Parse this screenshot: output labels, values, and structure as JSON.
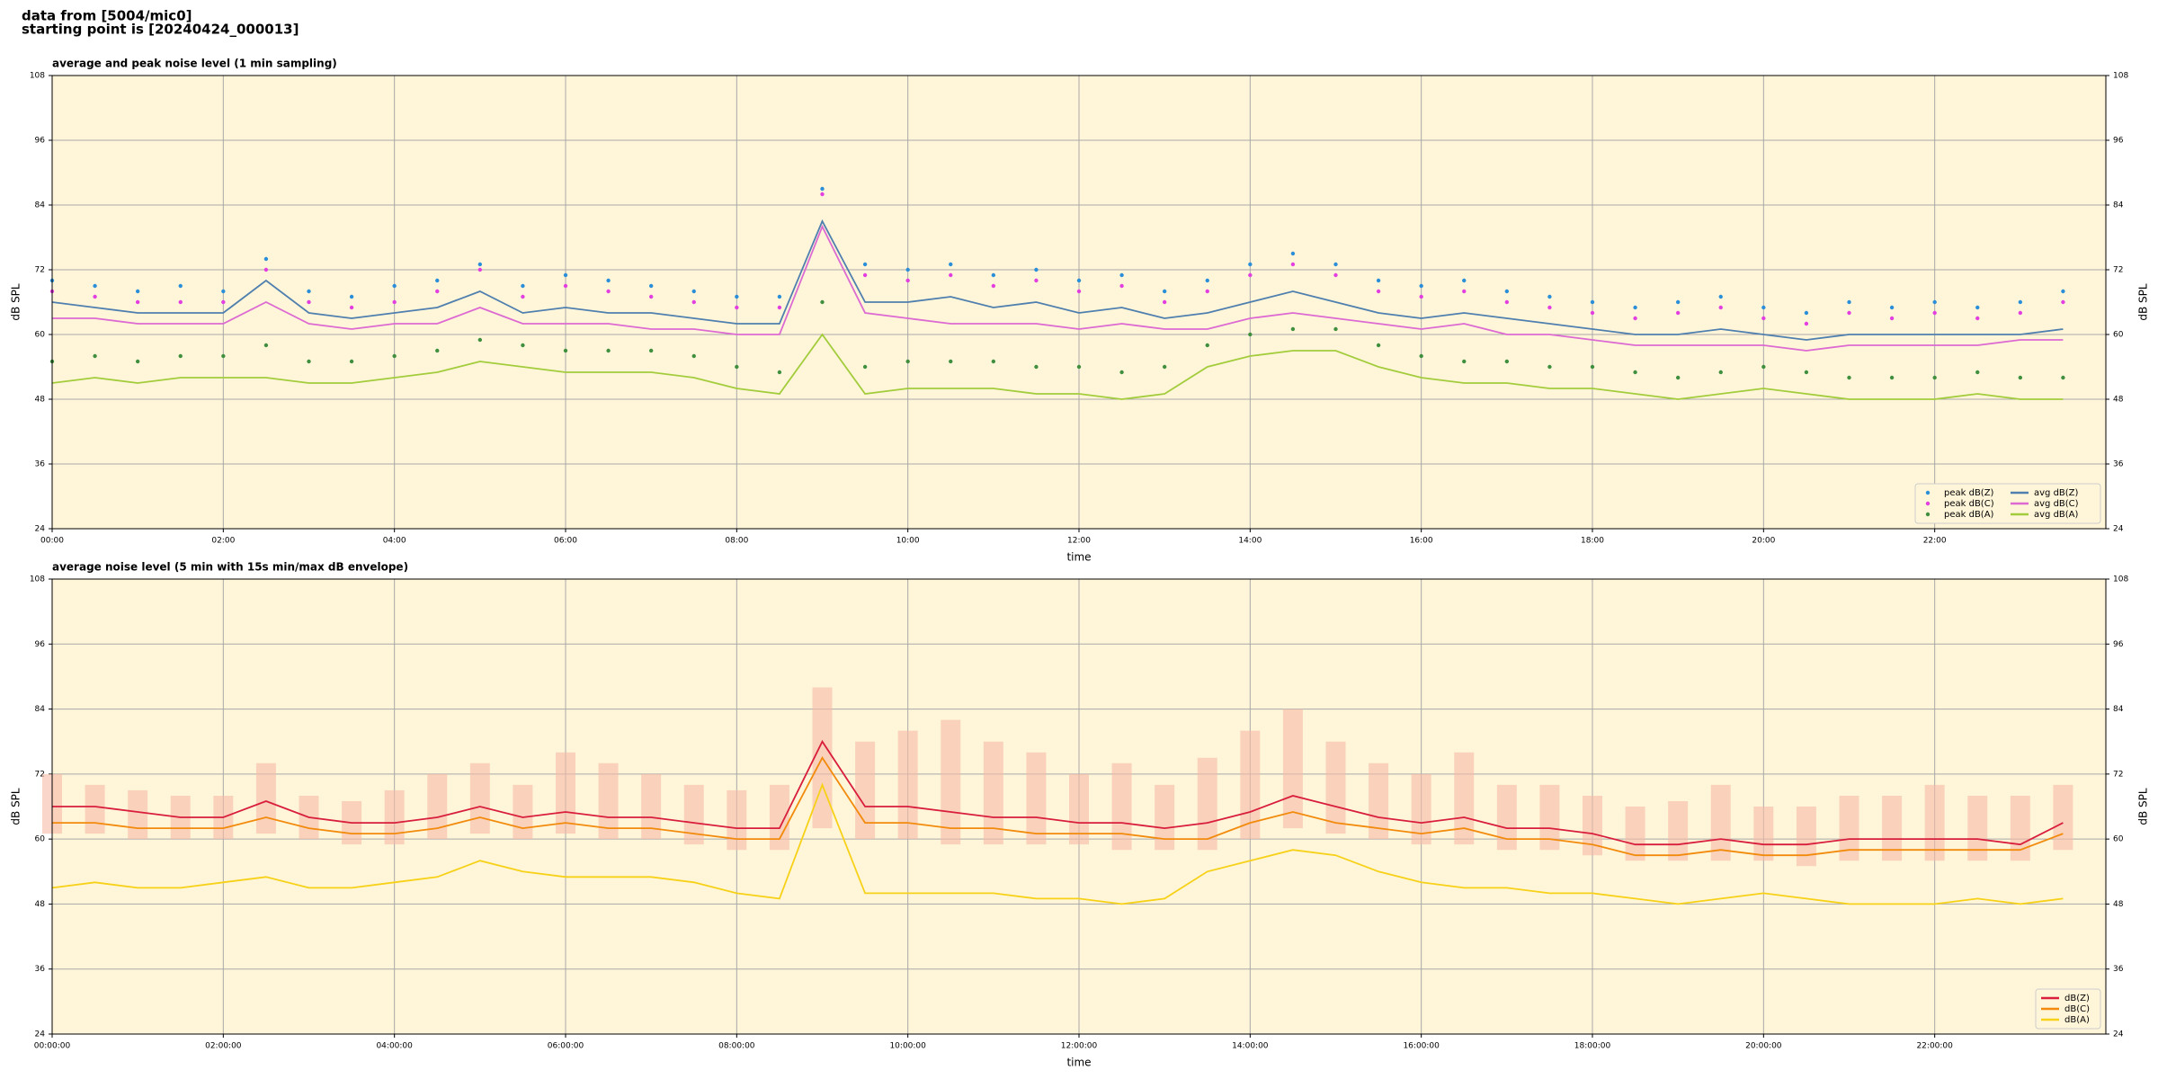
{
  "header": {
    "line1": "data from [5004/mic0]",
    "line2": "starting point is [20240424_000013]"
  },
  "chart_data": [
    {
      "type": "line",
      "title": "average and peak noise level (1 min sampling)",
      "x_label": "time",
      "y_label": "dB SPL",
      "x": [
        0,
        0.5,
        1,
        1.5,
        2,
        2.5,
        3,
        3.5,
        4,
        4.5,
        5,
        5.5,
        6,
        6.5,
        7,
        7.5,
        8,
        8.5,
        9,
        9.5,
        10,
        10.5,
        11,
        11.5,
        12,
        12.5,
        13,
        13.5,
        14,
        14.5,
        15,
        15.5,
        16,
        16.5,
        17,
        17.5,
        18,
        18.5,
        19,
        19.5,
        20,
        20.5,
        21,
        21.5,
        22,
        22.5,
        23,
        23.5
      ],
      "xlim": [
        0,
        24
      ],
      "xticks": [
        {
          "value": 0,
          "label": "00:00"
        },
        {
          "value": 2,
          "label": "02:00"
        },
        {
          "value": 4,
          "label": "04:00"
        },
        {
          "value": 6,
          "label": "06:00"
        },
        {
          "value": 8,
          "label": "08:00"
        },
        {
          "value": 10,
          "label": "10:00"
        },
        {
          "value": 12,
          "label": "12:00"
        },
        {
          "value": 14,
          "label": "14:00"
        },
        {
          "value": 16,
          "label": "16:00"
        },
        {
          "value": 18,
          "label": "18:00"
        },
        {
          "value": 20,
          "label": "20:00"
        },
        {
          "value": 22,
          "label": "22:00"
        }
      ],
      "ylim": [
        24,
        108
      ],
      "yticks": [
        24,
        36,
        48,
        60,
        72,
        84,
        96,
        108
      ],
      "grid": true,
      "background": "#fff6d9",
      "legend": "lower right",
      "legend_columns": 2,
      "series": [
        {
          "name": "peak dB(Z)",
          "type": "scatter",
          "color": "#2a8fd8",
          "values": [
            70,
            69,
            68,
            69,
            68,
            74,
            68,
            67,
            69,
            70,
            73,
            69,
            71,
            70,
            69,
            68,
            67,
            67,
            87,
            73,
            72,
            73,
            71,
            72,
            70,
            71,
            68,
            70,
            73,
            75,
            73,
            70,
            69,
            70,
            68,
            67,
            66,
            65,
            66,
            67,
            65,
            64,
            66,
            65,
            66,
            65,
            66,
            68
          ]
        },
        {
          "name": "peak dB(C)",
          "type": "scatter",
          "color": "#e23ee0",
          "values": [
            68,
            67,
            66,
            66,
            66,
            72,
            66,
            65,
            66,
            68,
            72,
            67,
            69,
            68,
            67,
            66,
            65,
            65,
            86,
            71,
            70,
            71,
            69,
            70,
            68,
            69,
            66,
            68,
            71,
            73,
            71,
            68,
            67,
            68,
            66,
            65,
            64,
            63,
            64,
            65,
            63,
            62,
            64,
            63,
            64,
            63,
            64,
            66
          ]
        },
        {
          "name": "peak dB(A)",
          "type": "scatter",
          "color": "#3f8f3f",
          "values": [
            55,
            56,
            55,
            56,
            56,
            58,
            55,
            55,
            56,
            57,
            59,
            58,
            57,
            57,
            57,
            56,
            54,
            53,
            66,
            54,
            55,
            55,
            55,
            54,
            54,
            53,
            54,
            58,
            60,
            61,
            61,
            58,
            56,
            55,
            55,
            54,
            54,
            53,
            52,
            53,
            54,
            53,
            52,
            52,
            52,
            53,
            52,
            52
          ]
        },
        {
          "name": "avg dB(Z)",
          "type": "line",
          "color": "#4f7fae",
          "values": [
            66,
            65,
            64,
            64,
            64,
            70,
            64,
            63,
            64,
            65,
            68,
            64,
            65,
            64,
            64,
            63,
            62,
            62,
            81,
            66,
            66,
            67,
            65,
            66,
            64,
            65,
            63,
            64,
            66,
            68,
            66,
            64,
            63,
            64,
            63,
            62,
            61,
            60,
            60,
            61,
            60,
            59,
            60,
            60,
            60,
            60,
            60,
            61
          ]
        },
        {
          "name": "avg dB(C)",
          "type": "line",
          "color": "#dd6ad2",
          "values": [
            63,
            63,
            62,
            62,
            62,
            66,
            62,
            61,
            62,
            62,
            65,
            62,
            62,
            62,
            61,
            61,
            60,
            60,
            80,
            64,
            63,
            62,
            62,
            62,
            61,
            62,
            61,
            61,
            63,
            64,
            63,
            62,
            61,
            62,
            60,
            60,
            59,
            58,
            58,
            58,
            58,
            57,
            58,
            58,
            58,
            58,
            59,
            59
          ]
        },
        {
          "name": "avg dB(A)",
          "type": "line",
          "color": "#a3cc3c",
          "values": [
            51,
            52,
            51,
            52,
            52,
            52,
            51,
            51,
            52,
            53,
            55,
            54,
            53,
            53,
            53,
            52,
            50,
            49,
            60,
            49,
            50,
            50,
            50,
            49,
            49,
            48,
            49,
            54,
            56,
            57,
            57,
            54,
            52,
            51,
            51,
            50,
            50,
            49,
            48,
            49,
            50,
            49,
            48,
            48,
            48,
            49,
            48,
            48
          ]
        }
      ]
    },
    {
      "type": "line",
      "title": "average noise level (5 min with 15s min/max dB envelope)",
      "x_label": "time",
      "y_label": "dB SPL",
      "x": [
        0,
        0.5,
        1,
        1.5,
        2,
        2.5,
        3,
        3.5,
        4,
        4.5,
        5,
        5.5,
        6,
        6.5,
        7,
        7.5,
        8,
        8.5,
        9,
        9.5,
        10,
        10.5,
        11,
        11.5,
        12,
        12.5,
        13,
        13.5,
        14,
        14.5,
        15,
        15.5,
        16,
        16.5,
        17,
        17.5,
        18,
        18.5,
        19,
        19.5,
        20,
        20.5,
        21,
        21.5,
        22,
        22.5,
        23,
        23.5
      ],
      "xlim": [
        0,
        24
      ],
      "xticks": [
        {
          "value": 0,
          "label": "00:00:00"
        },
        {
          "value": 2,
          "label": "02:00:00"
        },
        {
          "value": 4,
          "label": "04:00:00"
        },
        {
          "value": 6,
          "label": "06:00:00"
        },
        {
          "value": 8,
          "label": "08:00:00"
        },
        {
          "value": 10,
          "label": "10:00:00"
        },
        {
          "value": 12,
          "label": "12:00:00"
        },
        {
          "value": 14,
          "label": "14:00:00"
        },
        {
          "value": 16,
          "label": "16:00:00"
        },
        {
          "value": 18,
          "label": "18:00:00"
        },
        {
          "value": 20,
          "label": "20:00:00"
        },
        {
          "value": 22,
          "label": "22:00:00"
        }
      ],
      "ylim": [
        24,
        108
      ],
      "yticks": [
        24,
        36,
        48,
        60,
        72,
        84,
        96,
        108
      ],
      "grid": true,
      "background": "#fff6d9",
      "legend": "lower right",
      "legend_columns": 1,
      "envelope": {
        "color": "#f6bba6",
        "min": [
          61,
          61,
          60,
          60,
          60,
          61,
          60,
          59,
          59,
          60,
          61,
          60,
          61,
          60,
          60,
          59,
          58,
          58,
          62,
          60,
          60,
          59,
          59,
          59,
          59,
          58,
          58,
          58,
          60,
          62,
          61,
          60,
          59,
          59,
          58,
          58,
          57,
          56,
          56,
          56,
          56,
          55,
          56,
          56,
          56,
          56,
          56,
          58
        ],
        "max": [
          72,
          70,
          69,
          68,
          68,
          74,
          68,
          67,
          69,
          72,
          74,
          70,
          76,
          74,
          72,
          70,
          69,
          70,
          88,
          78,
          80,
          82,
          78,
          76,
          72,
          74,
          70,
          75,
          80,
          84,
          78,
          74,
          72,
          76,
          70,
          70,
          68,
          66,
          67,
          70,
          66,
          66,
          68,
          68,
          70,
          68,
          68,
          70
        ]
      },
      "series": [
        {
          "name": "dB(Z)",
          "type": "line",
          "color": "#d81e3c",
          "values": [
            66,
            66,
            65,
            64,
            64,
            67,
            64,
            63,
            63,
            64,
            66,
            64,
            65,
            64,
            64,
            63,
            62,
            62,
            78,
            66,
            66,
            65,
            64,
            64,
            63,
            63,
            62,
            63,
            65,
            68,
            66,
            64,
            63,
            64,
            62,
            62,
            61,
            59,
            59,
            60,
            59,
            59,
            60,
            60,
            60,
            60,
            59,
            63
          ]
        },
        {
          "name": "dB(C)",
          "type": "line",
          "color": "#f28a0c",
          "values": [
            63,
            63,
            62,
            62,
            62,
            64,
            62,
            61,
            61,
            62,
            64,
            62,
            63,
            62,
            62,
            61,
            60,
            60,
            75,
            63,
            63,
            62,
            62,
            61,
            61,
            61,
            60,
            60,
            63,
            65,
            63,
            62,
            61,
            62,
            60,
            60,
            59,
            57,
            57,
            58,
            57,
            57,
            58,
            58,
            58,
            58,
            58,
            61
          ]
        },
        {
          "name": "dB(A)",
          "type": "line",
          "color": "#f7d117",
          "values": [
            51,
            52,
            51,
            51,
            52,
            53,
            51,
            51,
            52,
            53,
            56,
            54,
            53,
            53,
            53,
            52,
            50,
            49,
            70,
            50,
            50,
            50,
            50,
            49,
            49,
            48,
            49,
            54,
            56,
            58,
            57,
            54,
            52,
            51,
            51,
            50,
            50,
            49,
            48,
            49,
            50,
            49,
            48,
            48,
            48,
            49,
            48,
            49
          ]
        }
      ]
    }
  ]
}
